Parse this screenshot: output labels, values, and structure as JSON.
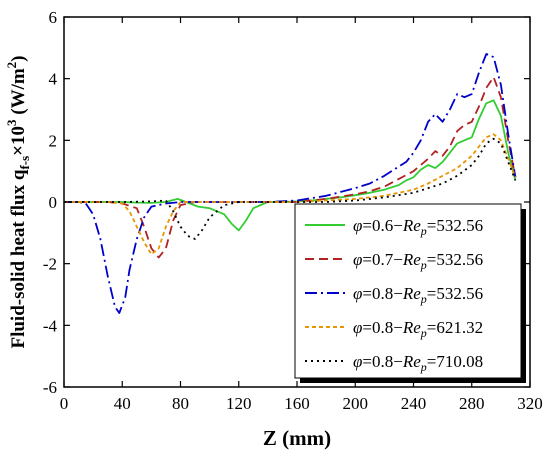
{
  "chart_data": {
    "type": "line",
    "xlabel": "Z (mm)",
    "ylabel": "Fluid-solid heat flux q",
    "ylabel_sub": "f-s",
    "ylabel_mid": "×10",
    "ylabel_sup": "3",
    "ylabel_unit": " (W/m",
    "ylabel_unit_sup": "2",
    "ylabel_unit_end": ")",
    "xlim": [
      0,
      320
    ],
    "ylim": [
      -6,
      6
    ],
    "xticks": [
      0,
      40,
      80,
      120,
      160,
      200,
      240,
      280,
      320
    ],
    "yticks": [
      -6,
      -4,
      -2,
      0,
      2,
      4,
      6
    ],
    "grid": false,
    "legend_position": "bottom-right",
    "series": [
      {
        "name": "φ=0.6−Re_p=532.56",
        "legend_phi": "φ",
        "legend_mid": "=0.6−",
        "legend_re": "Re",
        "legend_sub": "p",
        "legend_val": "=532.56",
        "color": "#33cc33",
        "dash": "solid",
        "x": [
          0,
          20,
          40,
          50,
          60,
          70,
          78,
          85,
          92,
          100,
          110,
          115,
          120,
          125,
          130,
          140,
          150,
          160,
          170,
          180,
          190,
          200,
          210,
          220,
          230,
          235,
          240,
          245,
          250,
          255,
          260,
          265,
          270,
          275,
          280,
          285,
          290,
          295,
          300,
          305,
          310
        ],
        "y": [
          0,
          0,
          0,
          -0.02,
          -0.03,
          0,
          0.1,
          -0.02,
          -0.15,
          -0.2,
          -0.4,
          -0.7,
          -0.92,
          -0.6,
          -0.2,
          0,
          0,
          0.02,
          0.05,
          0.1,
          0.15,
          0.22,
          0.3,
          0.4,
          0.55,
          0.7,
          0.8,
          1.05,
          1.2,
          1.1,
          1.3,
          1.6,
          1.9,
          2.0,
          2.1,
          2.7,
          3.2,
          3.3,
          2.8,
          1.6,
          0.7
        ]
      },
      {
        "name": "φ=0.7−Re_p=532.56",
        "legend_phi": "φ",
        "legend_mid": "=0.7−",
        "legend_re": "Re",
        "legend_sub": "p",
        "legend_val": "=532.56",
        "color": "#b22222",
        "dash": "9,5",
        "x": [
          0,
          20,
          30,
          40,
          50,
          55,
          60,
          65,
          70,
          75,
          80,
          90,
          100,
          120,
          140,
          160,
          180,
          200,
          210,
          220,
          230,
          240,
          250,
          255,
          260,
          265,
          270,
          275,
          280,
          285,
          290,
          295,
          300,
          305,
          310
        ],
        "y": [
          0,
          0,
          0,
          -0.05,
          -0.2,
          -0.8,
          -1.5,
          -1.8,
          -1.5,
          -0.6,
          -0.1,
          0,
          0,
          0,
          0,
          0,
          0.1,
          0.25,
          0.35,
          0.5,
          0.75,
          1.0,
          1.4,
          1.65,
          1.5,
          1.8,
          2.3,
          2.5,
          2.6,
          3.1,
          3.7,
          4.05,
          3.4,
          2.0,
          0.8
        ]
      },
      {
        "name": "φ=0.8−Re_p=532.56",
        "legend_phi": "φ",
        "legend_mid": "=0.8−",
        "legend_re": "Re",
        "legend_sub": "p",
        "legend_val": "=532.56",
        "color": "#0000cc",
        "dash": "12,4,2,4",
        "x": [
          0,
          10,
          15,
          20,
          25,
          30,
          35,
          38,
          42,
          45,
          50,
          55,
          60,
          70,
          80,
          100,
          120,
          140,
          160,
          180,
          200,
          210,
          220,
          230,
          235,
          240,
          245,
          250,
          255,
          260,
          265,
          270,
          275,
          280,
          285,
          290,
          295,
          300,
          305,
          310
        ],
        "y": [
          0,
          0,
          -0.05,
          -0.4,
          -1.2,
          -2.4,
          -3.4,
          -3.6,
          -3.1,
          -2.2,
          -1.2,
          -0.5,
          -0.15,
          -0.05,
          0,
          0,
          0,
          0,
          0.05,
          0.2,
          0.45,
          0.6,
          0.85,
          1.15,
          1.3,
          1.6,
          2.0,
          2.6,
          2.85,
          2.6,
          3.0,
          3.5,
          3.4,
          3.5,
          4.2,
          4.8,
          4.7,
          3.8,
          2.2,
          0.8
        ]
      },
      {
        "name": "φ=0.8−Re_p=621.32",
        "legend_phi": "φ",
        "legend_mid": "=0.8−",
        "legend_re": "Re",
        "legend_sub": "p",
        "legend_val": "=621.32",
        "color": "#e69500",
        "dash": "4,3",
        "x": [
          0,
          20,
          30,
          40,
          45,
          50,
          55,
          60,
          65,
          70,
          75,
          80,
          90,
          100,
          120,
          140,
          160,
          180,
          200,
          220,
          240,
          250,
          260,
          270,
          275,
          280,
          285,
          290,
          295,
          300,
          305,
          310
        ],
        "y": [
          0,
          0,
          0,
          -0.05,
          -0.3,
          -0.8,
          -1.3,
          -1.7,
          -1.5,
          -0.8,
          -0.3,
          0,
          0,
          0,
          0,
          0,
          0,
          0.05,
          0.1,
          0.2,
          0.4,
          0.6,
          0.85,
          1.1,
          1.3,
          1.5,
          1.8,
          2.1,
          2.2,
          2.0,
          1.4,
          0.8
        ]
      },
      {
        "name": "φ=0.8−Re_p=710.08",
        "legend_phi": "φ",
        "legend_mid": "=0.8−",
        "legend_re": "Re",
        "legend_sub": "p",
        "legend_val": "=710.08",
        "color": "#000000",
        "dash": "2,4",
        "x": [
          0,
          20,
          40,
          60,
          70,
          75,
          80,
          85,
          90,
          95,
          100,
          110,
          120,
          140,
          160,
          180,
          200,
          220,
          240,
          260,
          270,
          280,
          285,
          290,
          295,
          300,
          305,
          310
        ],
        "y": [
          0,
          0,
          0,
          0.02,
          0.05,
          -0.3,
          -0.8,
          -1.1,
          -1.2,
          -0.9,
          -0.5,
          -0.1,
          0,
          0,
          0,
          0,
          0.05,
          0.15,
          0.3,
          0.6,
          0.85,
          1.2,
          1.5,
          1.9,
          2.05,
          1.9,
          1.3,
          0.7
        ]
      }
    ]
  }
}
